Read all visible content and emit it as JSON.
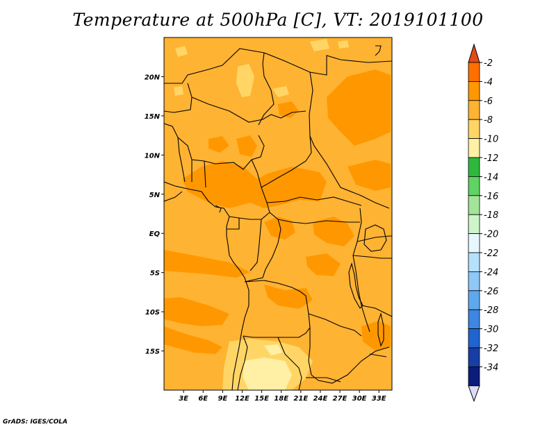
{
  "title": "Temperature at 500hPa [C], VT: 2019101100",
  "footer": "GrADS: IGES/COLA",
  "map": {
    "variable": "Temperature at 500hPa",
    "units": "C",
    "valid_time": "2019101100",
    "lon_range": [
      0,
      35
    ],
    "lat_range": [
      -20,
      25
    ],
    "lat_ticks": [
      "20N",
      "15N",
      "10N",
      "5N",
      "EQ",
      "5S",
      "10S",
      "15S"
    ],
    "lon_ticks": [
      "3E",
      "6E",
      "9E",
      "12E",
      "15E",
      "18E",
      "21E",
      "24E",
      "27E",
      "30E",
      "33E"
    ]
  },
  "colorbar": {
    "labels": [
      "-2",
      "-4",
      "-6",
      "-8",
      "-10",
      "-12",
      "-14",
      "-16",
      "-18",
      "-20",
      "-22",
      "-24",
      "-26",
      "-28",
      "-30",
      "-32",
      "-34"
    ],
    "colors": [
      "#e64a19",
      "#ff6f00",
      "#ff9800",
      "#ffb333",
      "#ffd666",
      "#fff0a5",
      "#2eb83c",
      "#5fd363",
      "#a2e599",
      "#cdf5c9",
      "#e8f7ff",
      "#b6e0fc",
      "#8ec8f6",
      "#5ea9ee",
      "#3d86e3",
      "#2064d0",
      "#163ea6",
      "#0b1c7a",
      "#dcdcf7"
    ]
  },
  "field_colors": {
    "base": "#ffb333",
    "warm": "#ff9800",
    "cool": "#ffd666",
    "coolest": "#fff0a5"
  }
}
